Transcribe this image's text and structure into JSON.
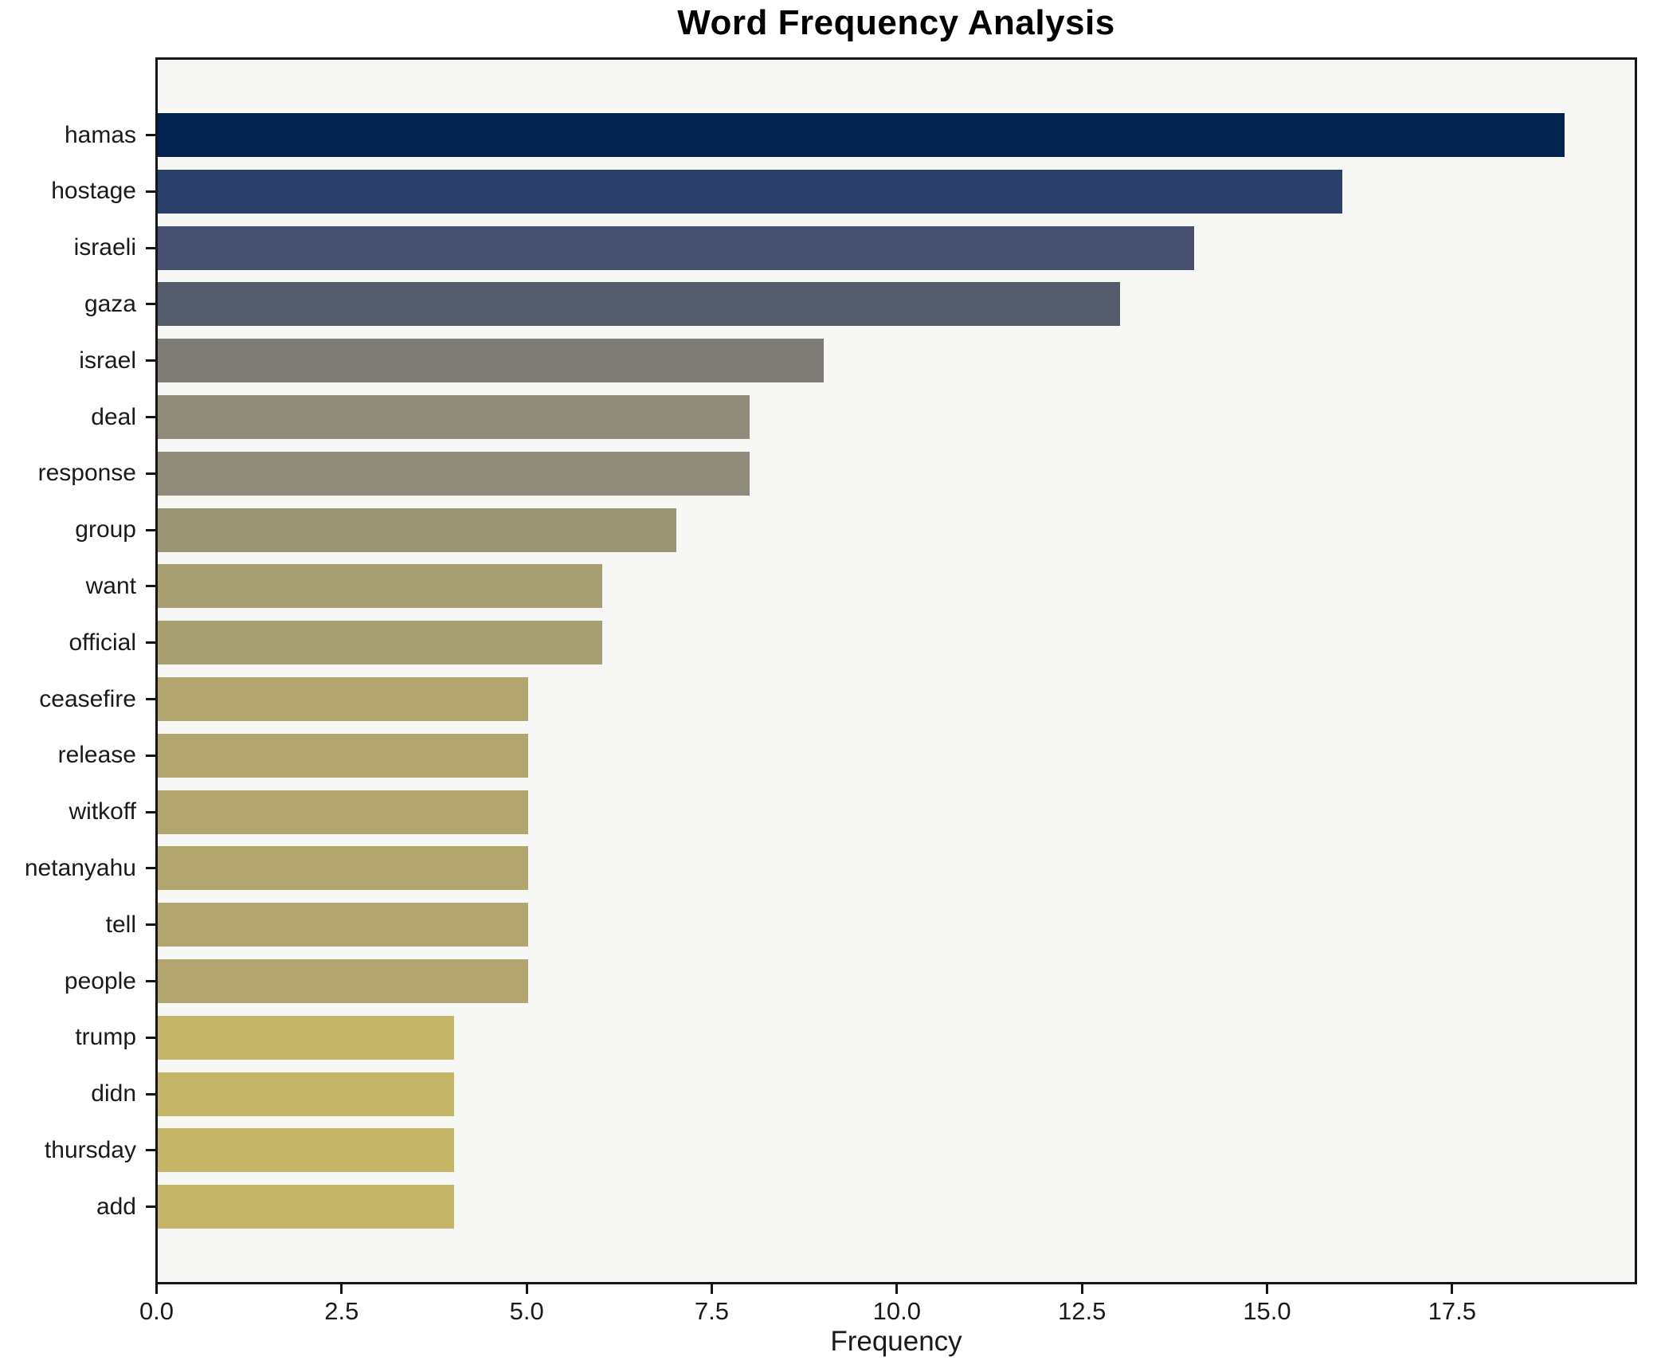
{
  "chart_data": {
    "type": "bar",
    "orientation": "horizontal",
    "title": "Word Frequency Analysis",
    "xlabel": "Frequency",
    "ylabel": "",
    "categories": [
      "hamas",
      "hostage",
      "israeli",
      "gaza",
      "israel",
      "deal",
      "response",
      "group",
      "want",
      "official",
      "ceasefire",
      "release",
      "witkoff",
      "netanyahu",
      "tell",
      "people",
      "trump",
      "didn",
      "thursday",
      "add"
    ],
    "values": [
      19,
      16,
      14,
      13,
      9,
      8,
      8,
      7,
      6,
      6,
      5,
      5,
      5,
      5,
      5,
      5,
      4,
      4,
      4,
      4
    ],
    "bar_colors": [
      "#02234f",
      "#2a3f69",
      "#475070",
      "#555c6c",
      "#7f7c77",
      "#908b7b",
      "#908b7a",
      "#9a9374",
      "#a89f73",
      "#a89f73",
      "#b2a66e",
      "#b2a66e",
      "#b2a66e",
      "#b2a66e",
      "#b2a66e",
      "#b2a66e",
      "#c5b667",
      "#c5b667",
      "#c5b667",
      "#c5b667"
    ],
    "xlim": [
      0,
      19.95
    ],
    "xticks": [
      0.0,
      2.5,
      5.0,
      7.5,
      10.0,
      12.5,
      15.0,
      17.5
    ],
    "xtick_labels": [
      "0.0",
      "2.5",
      "5.0",
      "7.5",
      "10.0",
      "12.5",
      "15.0",
      "17.5"
    ],
    "grid": false,
    "legend": "none",
    "plot_background": "#f7f7f6",
    "figure_background": "#ffffff",
    "spine_color": "#161616"
  }
}
